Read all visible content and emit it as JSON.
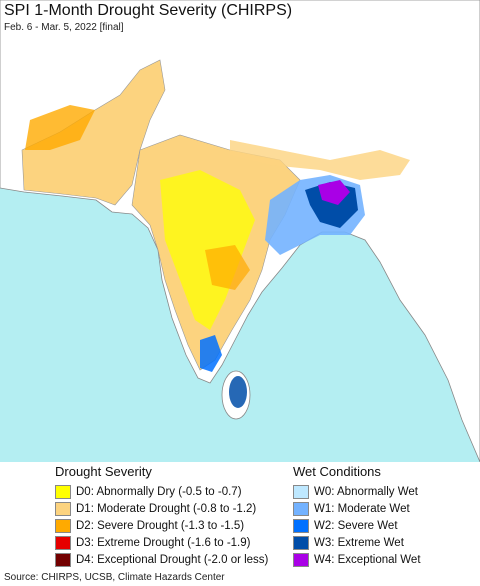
{
  "header": {
    "title": "SPI 1-Month Drought Severity (CHIRPS)",
    "subtitle": "Feb. 6 - Mar. 5, 2022 [final]"
  },
  "legend": {
    "drought": {
      "title": "Drought Severity",
      "items": [
        {
          "label": "D0: Abnormally Dry (-0.5 to -0.7)",
          "color": "#ffff00"
        },
        {
          "label": "D1: Moderate Drought (-0.8 to -1.2)",
          "color": "#fcd37f"
        },
        {
          "label": "D2: Severe Drought (-1.3 to -1.5)",
          "color": "#ffaa00"
        },
        {
          "label": "D3: Extreme Drought (-1.6 to -1.9)",
          "color": "#e60000"
        },
        {
          "label": "D4: Exceptional Drought (-2.0 or less)",
          "color": "#730000"
        }
      ]
    },
    "wet": {
      "title": "Wet Conditions",
      "items": [
        {
          "label": "W0: Abnormally Wet",
          "color": "#bee8ff"
        },
        {
          "label": "W1: Moderate Wet",
          "color": "#73b2ff"
        },
        {
          "label": "W2: Severe Wet",
          "color": "#0070ff"
        },
        {
          "label": "W3: Extreme Wet",
          "color": "#004da8"
        },
        {
          "label": "W4: Exceptional Wet",
          "color": "#a900e6"
        }
      ]
    }
  },
  "source": "Source: CHIRPS, UCSB, Climate Hazards Center"
}
